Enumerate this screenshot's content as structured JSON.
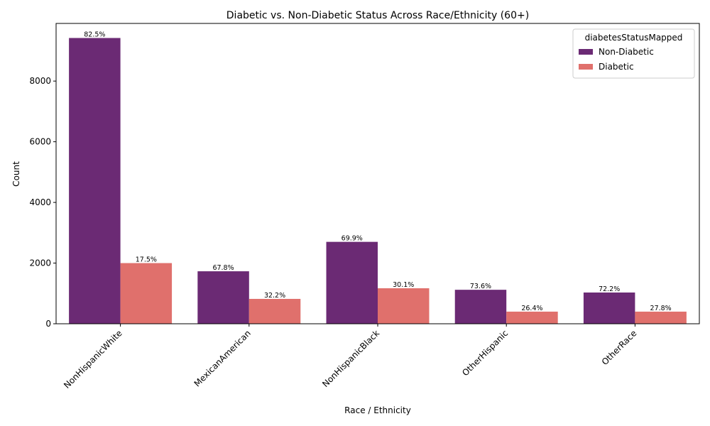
{
  "chart_data": {
    "type": "bar",
    "title": "Diabetic vs. Non-Diabetic Status Across Race/Ethnicity (60+)",
    "xlabel": "Race / Ethnicity",
    "ylabel": "Count",
    "ylim": [
      0,
      9900
    ],
    "yticks": [
      0,
      2000,
      4000,
      6000,
      8000
    ],
    "categories": [
      "NonHispanicWhite",
      "MexicanAmerican",
      "NonHispanicBlack",
      "OtherHispanic",
      "OtherRace"
    ],
    "legend": {
      "title": "diabetesStatusMapped",
      "position": "top-right"
    },
    "series": [
      {
        "name": "Non-Diabetic",
        "color": "#6b2a74",
        "values": [
          9420,
          1730,
          2700,
          1120,
          1030
        ],
        "labels": [
          "82.5%",
          "67.8%",
          "69.9%",
          "73.6%",
          "72.2%"
        ]
      },
      {
        "name": "Diabetic",
        "color": "#e0706c",
        "values": [
          2000,
          820,
          1170,
          400,
          400
        ],
        "labels": [
          "17.5%",
          "32.2%",
          "30.1%",
          "26.4%",
          "27.8%"
        ]
      }
    ]
  }
}
